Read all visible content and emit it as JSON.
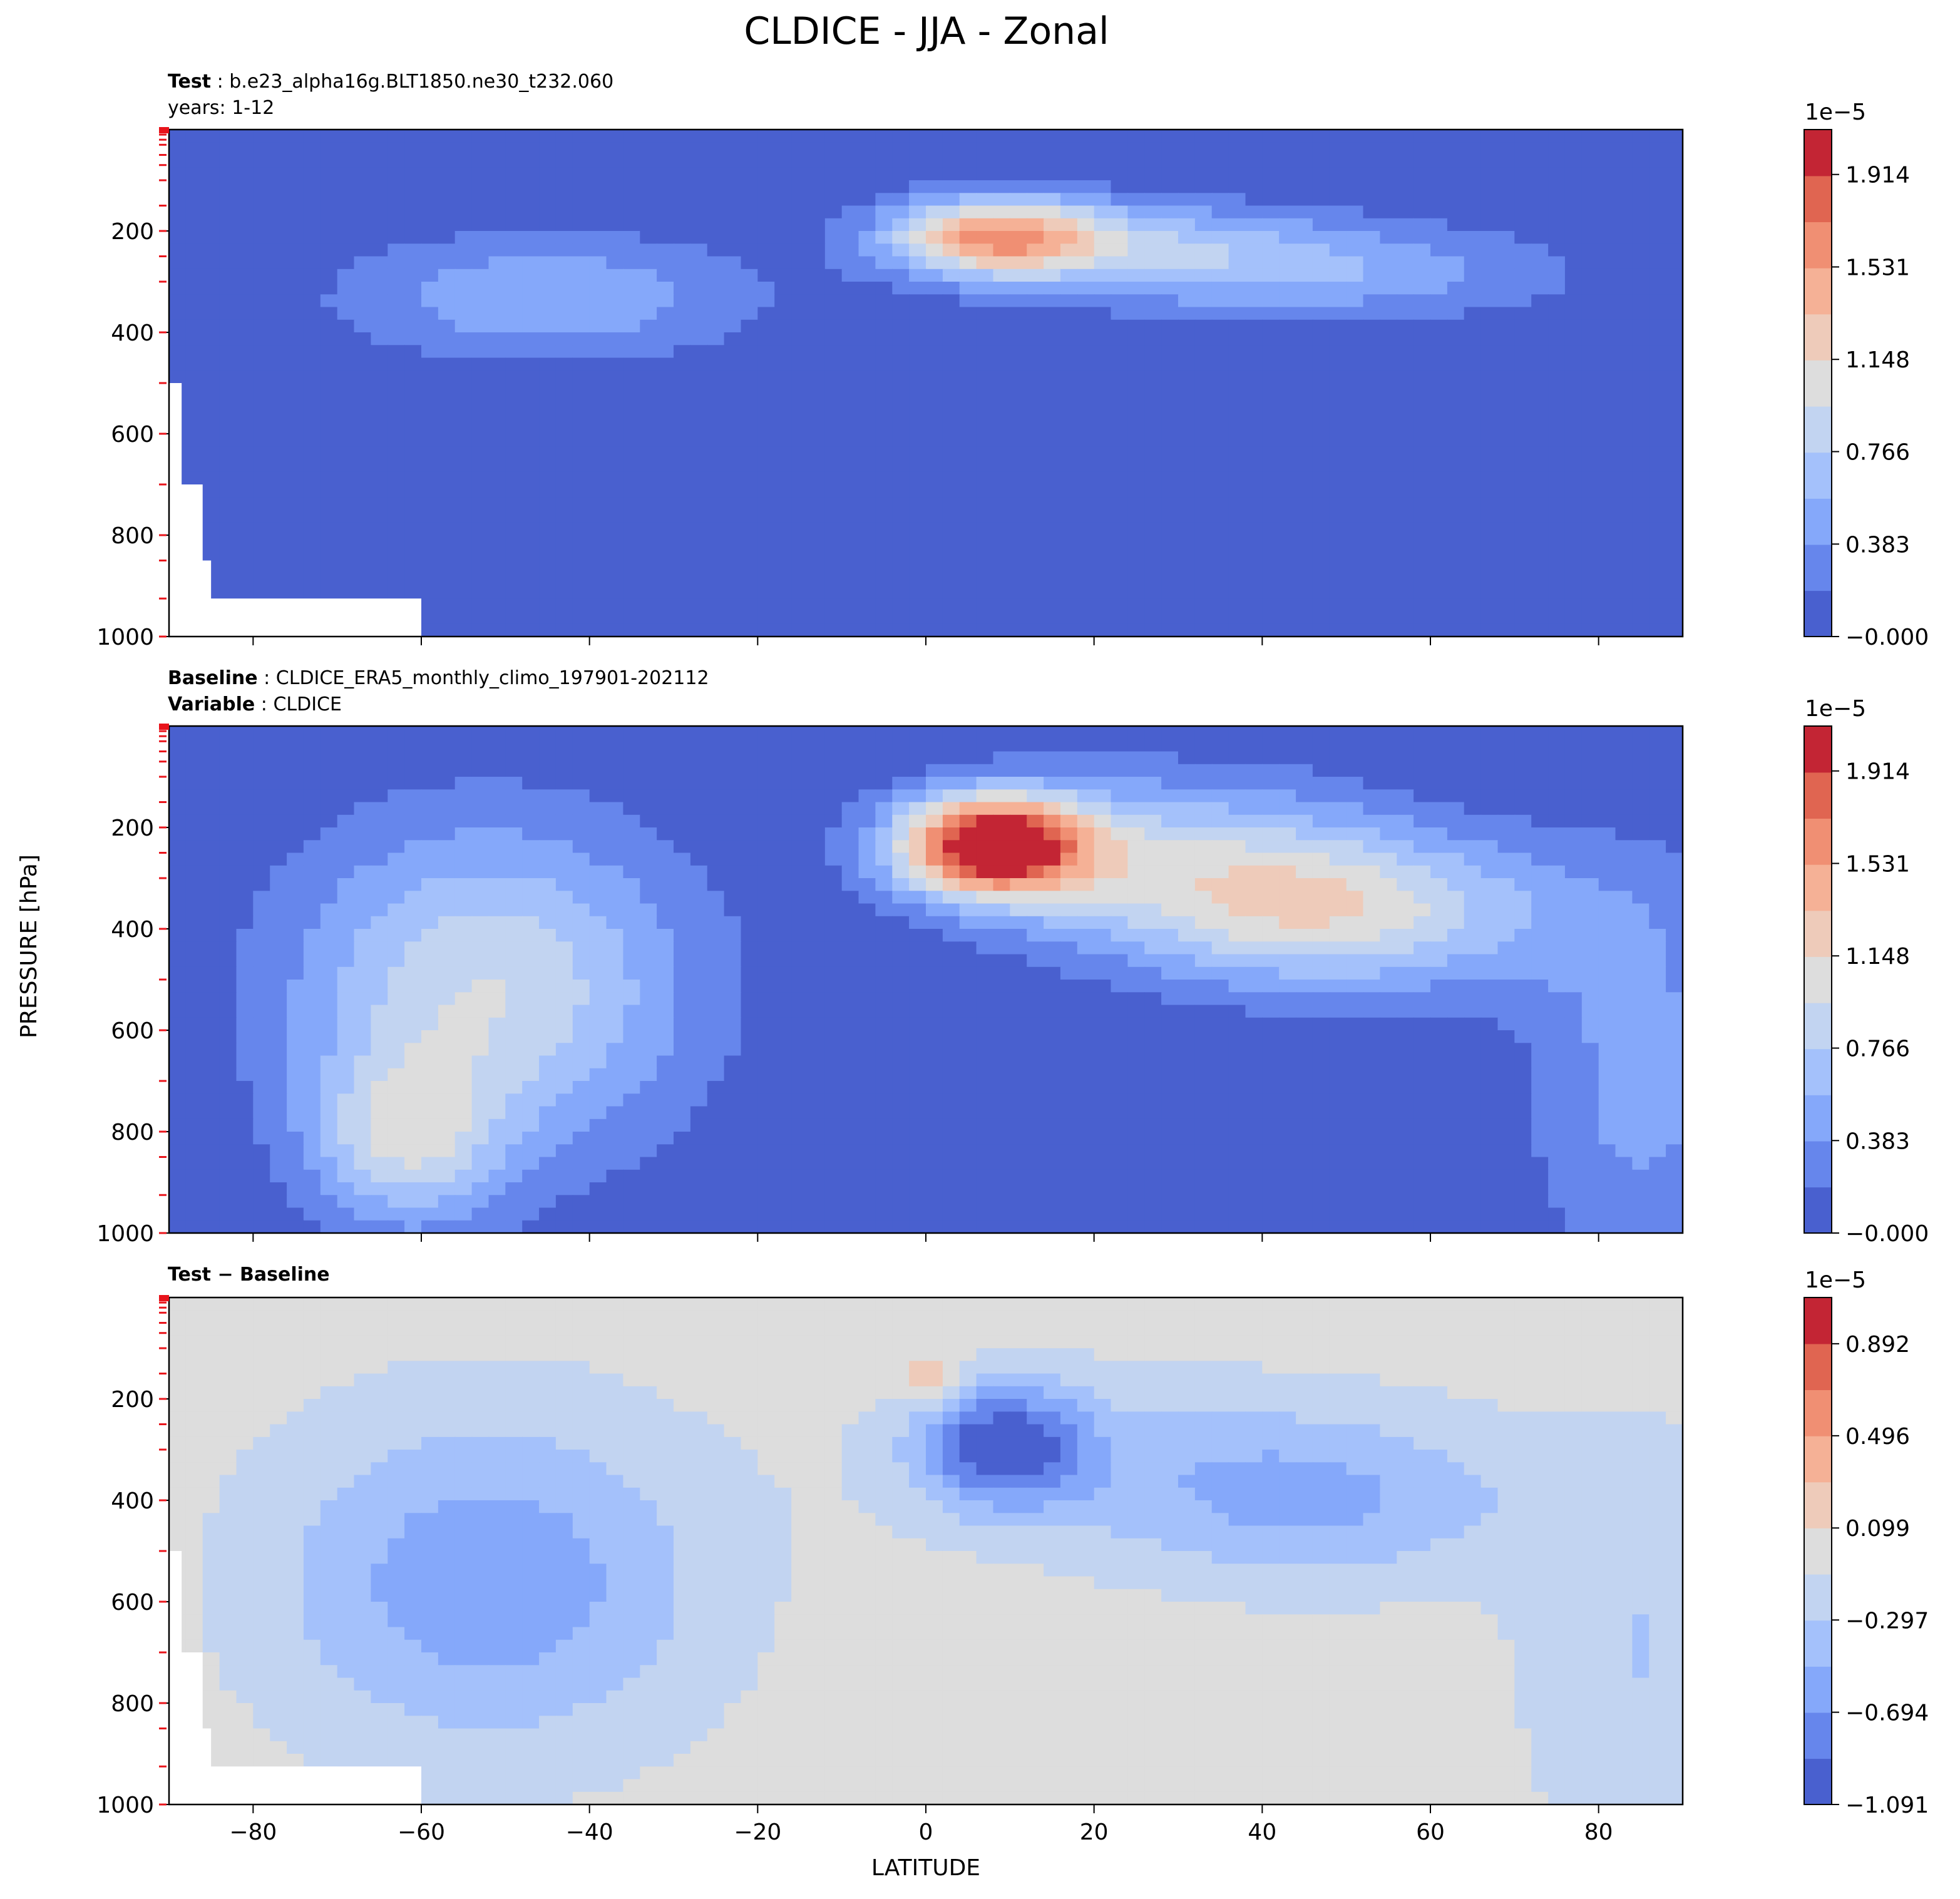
{
  "figure_title": "CLDICE - JJA - Zonal",
  "panels": [
    {
      "lines": [
        {
          "bold": "Test",
          "sep": " : ",
          "text": "b.e23_alpha16g.BLT1850.ne30_t232.060"
        },
        {
          "bold": "",
          "sep": "",
          "text": "years: 1-12"
        }
      ]
    },
    {
      "lines": [
        {
          "bold": "Baseline",
          "sep": " : ",
          "text": "CLDICE_ERA5_monthly_climo_197901-202112"
        },
        {
          "bold": "Variable",
          "sep": " : ",
          "text": "CLDICE"
        }
      ]
    },
    {
      "lines": [
        {
          "bold": "Test − Baseline",
          "sep": "",
          "text": ""
        }
      ]
    }
  ],
  "chart_data": [
    {
      "type": "heatmap",
      "panel": "Test",
      "ylabel": "PRESSURE [hPa]",
      "xlabel": "",
      "xlim": [
        -90,
        90
      ],
      "ylim": [
        1000,
        0
      ],
      "x_ticks": [
        -80,
        -60,
        -40,
        -20,
        0,
        20,
        40,
        60,
        80
      ],
      "y_ticks": [
        200,
        400,
        600,
        800,
        1000
      ],
      "colormap": "coolwarm",
      "colorbar": {
        "offset_label": "1e−5",
        "range": [
          0,
          2.1
        ],
        "tick_values": [
          1.914,
          1.531,
          1.148,
          0.766,
          0.383,
          0.0
        ],
        "tick_labels": [
          "1.914",
          "1.531",
          "1.148",
          "0.766",
          "0.383",
          "−0.000"
        ],
        "n_levels": 11
      },
      "features": [
        {
          "lat": 8,
          "pressure": 210,
          "peak": 1.35,
          "lat_halfwidth": 9,
          "p_halfwidth": 55
        },
        {
          "lat": -45,
          "pressure": 330,
          "peak": 0.55,
          "lat_halfwidth": 18,
          "p_halfwidth": 90
        },
        {
          "lat": 45,
          "pressure": 280,
          "peak": 0.55,
          "lat_halfwidth": 22,
          "p_halfwidth": 70
        },
        {
          "lat": 25,
          "pressure": 220,
          "peak": 0.45,
          "lat_halfwidth": 15,
          "p_halfwidth": 60
        }
      ]
    },
    {
      "type": "heatmap",
      "panel": "Baseline",
      "ylabel": "PRESSURE [hPa]",
      "xlabel": "",
      "xlim": [
        -90,
        90
      ],
      "ylim": [
        1000,
        0
      ],
      "x_ticks": [
        -80,
        -60,
        -40,
        -20,
        0,
        20,
        40,
        60,
        80
      ],
      "y_ticks": [
        200,
        400,
        600,
        800,
        1000
      ],
      "colormap": "coolwarm",
      "colorbar": {
        "offset_label": "1e−5",
        "range": [
          0,
          2.1
        ],
        "tick_values": [
          1.914,
          1.531,
          1.148,
          0.766,
          0.383,
          0.0
        ],
        "tick_labels": [
          "1.914",
          "1.531",
          "1.148",
          "0.766",
          "0.383",
          "−0.000"
        ],
        "n_levels": 11
      },
      "features": [
        {
          "lat": 8,
          "pressure": 235,
          "peak": 2.05,
          "lat_halfwidth": 8,
          "p_halfwidth": 70
        },
        {
          "lat": -52,
          "pressure": 520,
          "peak": 0.95,
          "lat_halfwidth": 17,
          "p_halfwidth": 230
        },
        {
          "lat": -62,
          "pressure": 820,
          "peak": 0.75,
          "lat_halfwidth": 8,
          "p_halfwidth": 120
        },
        {
          "lat": 50,
          "pressure": 370,
          "peak": 0.95,
          "lat_halfwidth": 18,
          "p_halfwidth": 110
        },
        {
          "lat": 28,
          "pressure": 260,
          "peak": 0.7,
          "lat_halfwidth": 18,
          "p_halfwidth": 120
        },
        {
          "lat": 85,
          "pressure": 700,
          "peak": 0.45,
          "lat_halfwidth": 10,
          "p_halfwidth": 300
        }
      ]
    },
    {
      "type": "heatmap",
      "panel": "Test − Baseline",
      "ylabel": "PRESSURE [hPa]",
      "xlabel": "LATITUDE",
      "xlim": [
        -90,
        90
      ],
      "ylim": [
        1000,
        0
      ],
      "x_ticks": [
        -80,
        -60,
        -40,
        -20,
        0,
        20,
        40,
        60,
        80
      ],
      "x_tick_labels": [
        "−80",
        "−60",
        "−40",
        "−20",
        "0",
        "20",
        "40",
        "60",
        "80"
      ],
      "y_ticks": [
        200,
        400,
        600,
        800,
        1000
      ],
      "colormap": "coolwarm",
      "colorbar": {
        "offset_label": "1e−5",
        "range": [
          -1.091,
          1.091
        ],
        "tick_values": [
          0.892,
          0.496,
          0.099,
          -0.297,
          -0.694,
          -1.091
        ],
        "tick_labels": [
          "0.892",
          "0.496",
          "0.099",
          "−0.297",
          "−0.694",
          "−1.091"
        ],
        "n_levels": 11
      },
      "features": [
        {
          "lat": 9,
          "pressure": 290,
          "peak": -0.95,
          "lat_halfwidth": 7,
          "p_halfwidth": 85
        },
        {
          "lat": -52,
          "pressure": 560,
          "peak": -0.65,
          "lat_halfwidth": 18,
          "p_halfwidth": 230
        },
        {
          "lat": 48,
          "pressure": 400,
          "peak": -0.45,
          "lat_halfwidth": 17,
          "p_halfwidth": 120
        },
        {
          "lat": 25,
          "pressure": 330,
          "peak": -0.25,
          "lat_halfwidth": 20,
          "p_halfwidth": 130
        },
        {
          "lat": 85,
          "pressure": 700,
          "peak": -0.3,
          "lat_halfwidth": 10,
          "p_halfwidth": 300
        },
        {
          "lat": 1,
          "pressure": 165,
          "peak": 0.35,
          "lat_halfwidth": 3,
          "p_halfwidth": 40
        }
      ]
    }
  ]
}
